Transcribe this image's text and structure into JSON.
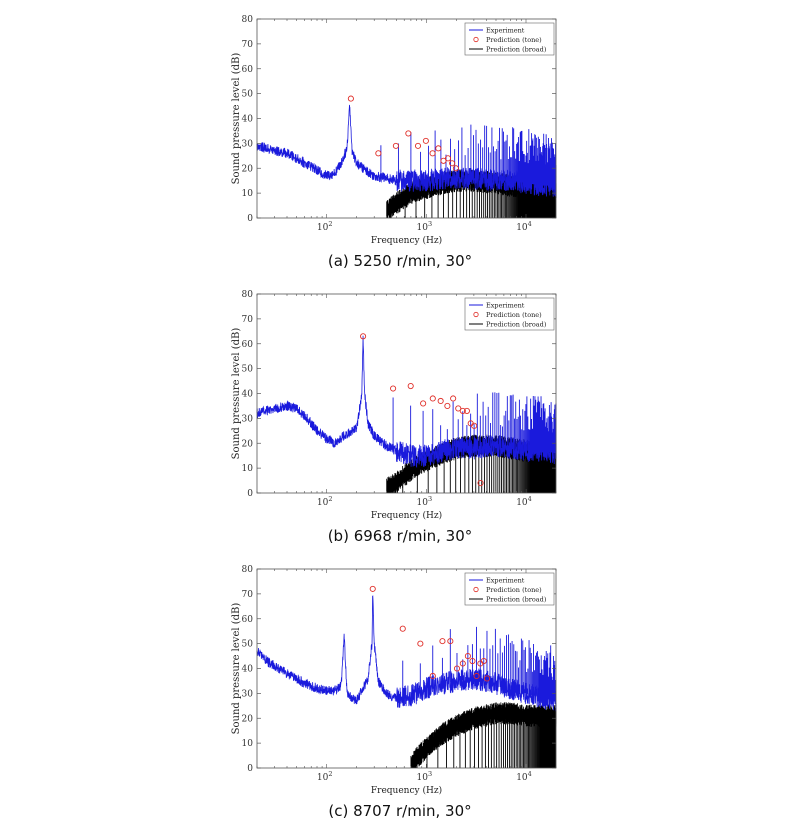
{
  "chart_data": [
    {
      "type": "line",
      "caption": "(a) 5250 r/min, 30°",
      "xlabel": "Frequency (Hz)",
      "ylabel": "Sound pressure level (dB)",
      "xscale": "log",
      "xlim": [
        20,
        20000
      ],
      "ylim": [
        0,
        80
      ],
      "yticks": [
        0,
        10,
        20,
        30,
        40,
        50,
        60,
        70,
        80
      ],
      "xticks": [
        "10^2",
        "10^3",
        "10^4"
      ],
      "legend": [
        "Experiment",
        "Prediction (tone)",
        "Prediction (broad)"
      ],
      "legend_position": "top-right",
      "colors": {
        "experiment": "#1a1adc",
        "tone": "#e0302a",
        "broad": "#000000"
      },
      "series": [
        {
          "name": "Experiment",
          "x": [
            20,
            25,
            30,
            40,
            50,
            60,
            70,
            80,
            100,
            120,
            140,
            160,
            170,
            175,
            180,
            200,
            250,
            300,
            400,
            500,
            700,
            1000,
            1500,
            2000,
            3000,
            5000,
            7000,
            10000,
            15000,
            20000
          ],
          "y": [
            29,
            28,
            27,
            26,
            24,
            22,
            21,
            19,
            17,
            18,
            22,
            28,
            46,
            36,
            27,
            22,
            19,
            17,
            16,
            15,
            15,
            15,
            16,
            16,
            16,
            15,
            15,
            14,
            13,
            13
          ]
        },
        {
          "name": "Prediction (tone)",
          "x": [
            175,
            330,
            495,
            660,
            825,
            990,
            1155,
            1320,
            1485,
            1650,
            1815,
            1980
          ],
          "y": [
            48,
            26,
            29,
            34,
            29,
            31,
            26,
            28,
            23,
            24,
            22,
            20
          ]
        },
        {
          "name": "Prediction (broad)",
          "x": [
            400,
            500,
            600,
            700,
            800,
            1000,
            1500,
            2000,
            3000,
            5000,
            7000,
            10000,
            15000,
            20000
          ],
          "y": [
            3,
            6,
            8,
            10,
            11,
            12,
            14,
            15,
            15,
            14,
            13,
            12,
            11,
            11
          ]
        }
      ]
    },
    {
      "type": "line",
      "caption": "(b) 6968 r/min, 30°",
      "xlabel": "Frequency (Hz)",
      "ylabel": "Sound pressure level (dB)",
      "xscale": "log",
      "xlim": [
        20,
        20000
      ],
      "ylim": [
        0,
        80
      ],
      "yticks": [
        0,
        10,
        20,
        30,
        40,
        50,
        60,
        70,
        80
      ],
      "xticks": [
        "10^2",
        "10^3",
        "10^4"
      ],
      "legend": [
        "Experiment",
        "Prediction (tone)",
        "Prediction (broad)"
      ],
      "legend_position": "top-right",
      "colors": {
        "experiment": "#1a1adc",
        "tone": "#e0302a",
        "broad": "#000000"
      },
      "series": [
        {
          "name": "Experiment",
          "x": [
            20,
            25,
            30,
            40,
            50,
            60,
            70,
            80,
            100,
            120,
            150,
            200,
            225,
            232,
            240,
            260,
            300,
            400,
            500,
            700,
            1000,
            1500,
            2000,
            3000,
            5000,
            7000,
            10000,
            15000,
            20000
          ],
          "y": [
            32,
            33,
            34,
            35,
            34,
            31,
            28,
            25,
            22,
            20,
            23,
            26,
            40,
            63,
            40,
            28,
            23,
            19,
            17,
            15,
            15,
            17,
            18,
            18,
            19,
            18,
            17,
            17,
            16
          ]
        },
        {
          "name": "Prediction (tone)",
          "x": [
            232,
            464,
            697,
            929,
            1161,
            1393,
            1626,
            1858,
            2090,
            2322,
            2555,
            2787,
            3019,
            3500
          ],
          "y": [
            63,
            42,
            43,
            36,
            38,
            37,
            35,
            38,
            34,
            33,
            33,
            28,
            27,
            4
          ]
        },
        {
          "name": "Prediction (broad)",
          "x": [
            400,
            500,
            600,
            700,
            800,
            1000,
            1500,
            2000,
            3000,
            5000,
            7000,
            10000,
            15000,
            20000
          ],
          "y": [
            2,
            4,
            7,
            9,
            11,
            13,
            16,
            18,
            19,
            19,
            18,
            17,
            17,
            17
          ]
        }
      ]
    },
    {
      "type": "line",
      "caption": "(c) 8707 r/min, 30°",
      "xlabel": "Frequency (Hz)",
      "ylabel": "Sound pressure level (dB)",
      "xscale": "log",
      "xlim": [
        20,
        20000
      ],
      "ylim": [
        0,
        80
      ],
      "yticks": [
        0,
        10,
        20,
        30,
        40,
        50,
        60,
        70,
        80
      ],
      "xticks": [
        "10^2",
        "10^3",
        "10^4"
      ],
      "legend": [
        "Experiment",
        "Prediction (tone)",
        "Prediction (broad)"
      ],
      "legend_position": "top-right",
      "colors": {
        "experiment": "#1a1adc",
        "tone": "#e0302a",
        "broad": "#000000"
      },
      "series": [
        {
          "name": "Experiment",
          "x": [
            20,
            25,
            30,
            40,
            50,
            60,
            70,
            80,
            100,
            120,
            140,
            150,
            160,
            200,
            260,
            285,
            290,
            300,
            330,
            400,
            500,
            700,
            1000,
            1500,
            2000,
            3000,
            5000,
            7000,
            10000,
            15000,
            20000
          ],
          "y": [
            47,
            43,
            41,
            38,
            36,
            34,
            33,
            32,
            31,
            31,
            33,
            53,
            30,
            27,
            36,
            50,
            72,
            50,
            35,
            30,
            28,
            29,
            32,
            34,
            35,
            36,
            34,
            32,
            30,
            28,
            27
          ]
        },
        {
          "name": "Prediction (tone)",
          "x": [
            290,
            580,
            871,
            1161,
            1451,
            1741,
            2031,
            2322,
            2612,
            2902,
            3192,
            3483,
            3773,
            4063
          ],
          "y": [
            72,
            56,
            50,
            37,
            51,
            51,
            40,
            42,
            45,
            43,
            37,
            42,
            43,
            36
          ]
        },
        {
          "name": "Prediction (broad)",
          "x": [
            700,
            800,
            1000,
            1200,
            1500,
            2000,
            3000,
            5000,
            7000,
            10000,
            15000,
            20000
          ],
          "y": [
            1,
            4,
            8,
            11,
            14,
            17,
            20,
            22,
            22,
            21,
            21,
            21
          ]
        }
      ]
    }
  ]
}
